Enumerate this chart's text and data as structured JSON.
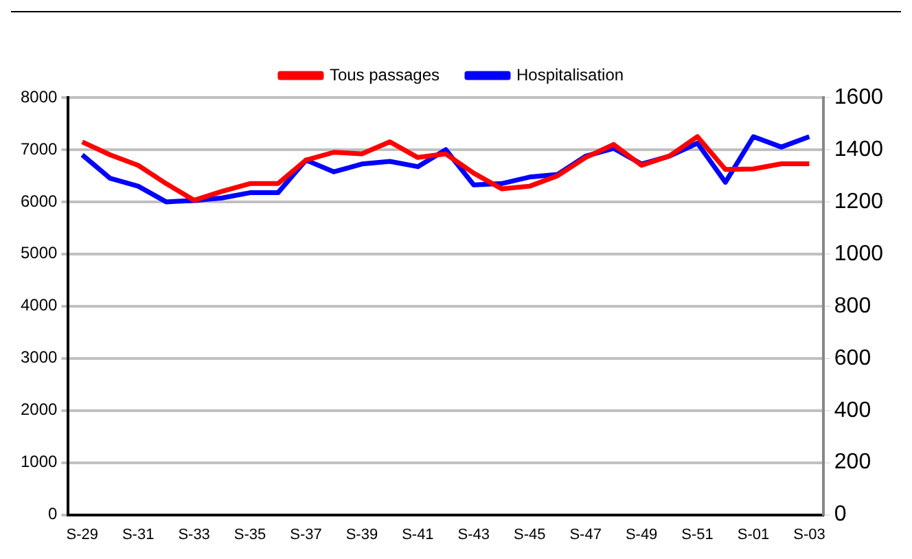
{
  "chart_data": {
    "type": "line",
    "categories": [
      "S-29",
      null,
      "S-31",
      null,
      "S-33",
      null,
      "S-35",
      null,
      "S-37",
      null,
      "S-39",
      null,
      "S-41",
      null,
      "S-43",
      null,
      "S-45",
      null,
      "S-47",
      null,
      "S-49",
      null,
      "S-51",
      null,
      "S-01",
      null,
      "S-03"
    ],
    "series": [
      {
        "name": "Tous passages",
        "color": "#ff0000",
        "values": [
          7150,
          6900,
          6700,
          6350,
          6030,
          6200,
          6350,
          6350,
          6800,
          6950,
          6920,
          7150,
          6850,
          6920,
          6550,
          6250,
          6300,
          6500,
          6850,
          7100,
          6700,
          6880,
          7250,
          6620,
          6630,
          6730,
          6730
        ]
      },
      {
        "name": "Hospitalisation",
        "color": "#0000ff",
        "axis": "y2",
        "values": [
          1380,
          1290,
          1260,
          1200,
          1205,
          1215,
          1235,
          1235,
          1360,
          1315,
          1345,
          1355,
          1335,
          1400,
          1265,
          1270,
          1295,
          1305,
          1375,
          1405,
          1345,
          1375,
          1425,
          1275,
          1450,
          1410,
          1450
        ]
      }
    ],
    "ylim": [
      0,
      8000
    ],
    "yticks": [
      0,
      1000,
      2000,
      3000,
      4000,
      5000,
      6000,
      7000,
      8000
    ],
    "y2lim": [
      0,
      1600
    ],
    "y2ticks": [
      0,
      200,
      400,
      600,
      800,
      1000,
      1200,
      1400,
      1600
    ],
    "grid": "y",
    "legend": "top",
    "marker": "none",
    "line_style": "solid"
  }
}
